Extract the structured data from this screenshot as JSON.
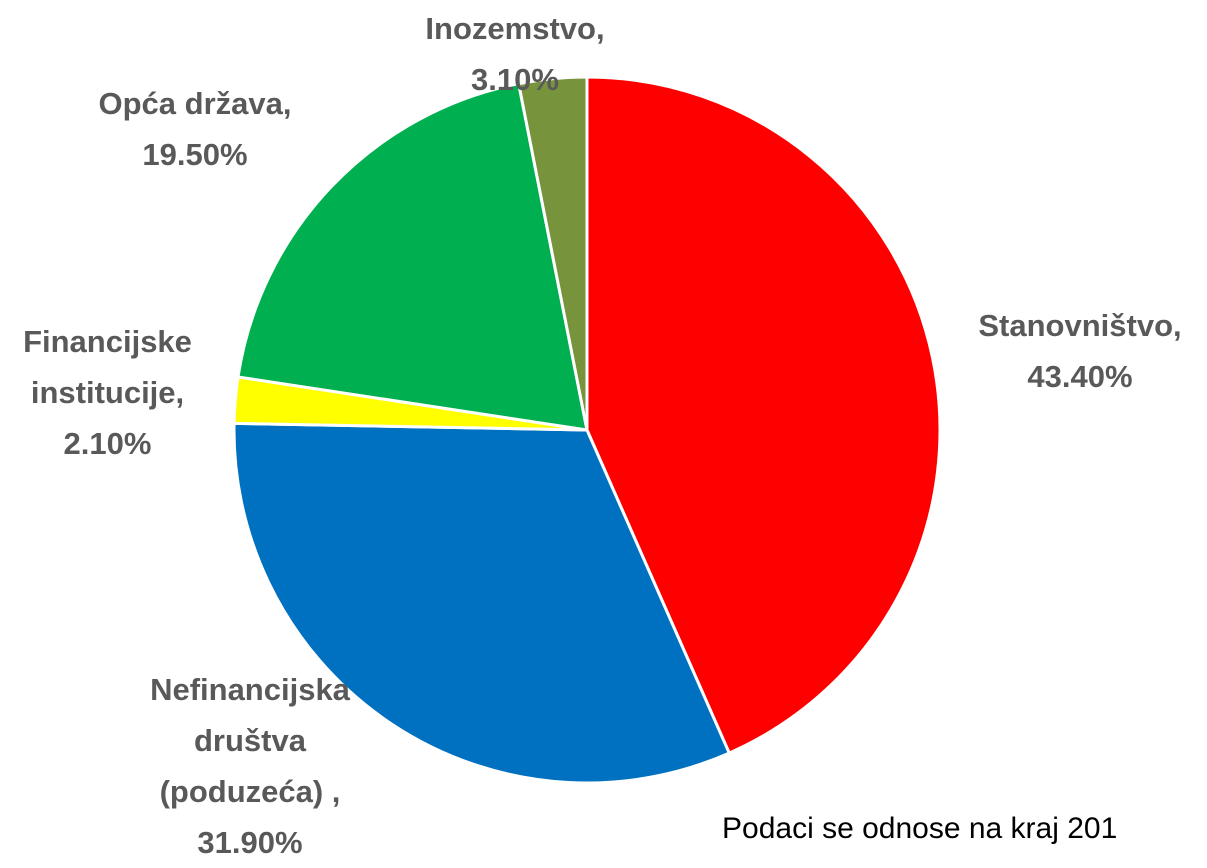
{
  "chart_data": {
    "type": "pie",
    "categories": [
      "Stanovništvo,",
      "Nefinancijska društva (poduzeća) ,",
      "Financijske institucije,",
      "Opća država,",
      "Inozemstvo,"
    ],
    "values": [
      43.4,
      31.9,
      2.1,
      19.5,
      3.1
    ],
    "value_labels": [
      "43.40%",
      "31.90%",
      "2.10%",
      "19.50%",
      "3.10%"
    ],
    "colors": [
      "#ff0000",
      "#0070c0",
      "#ffff00",
      "#00b050",
      "#77933c"
    ],
    "note": "Podaci se odnose na kraj 201"
  }
}
